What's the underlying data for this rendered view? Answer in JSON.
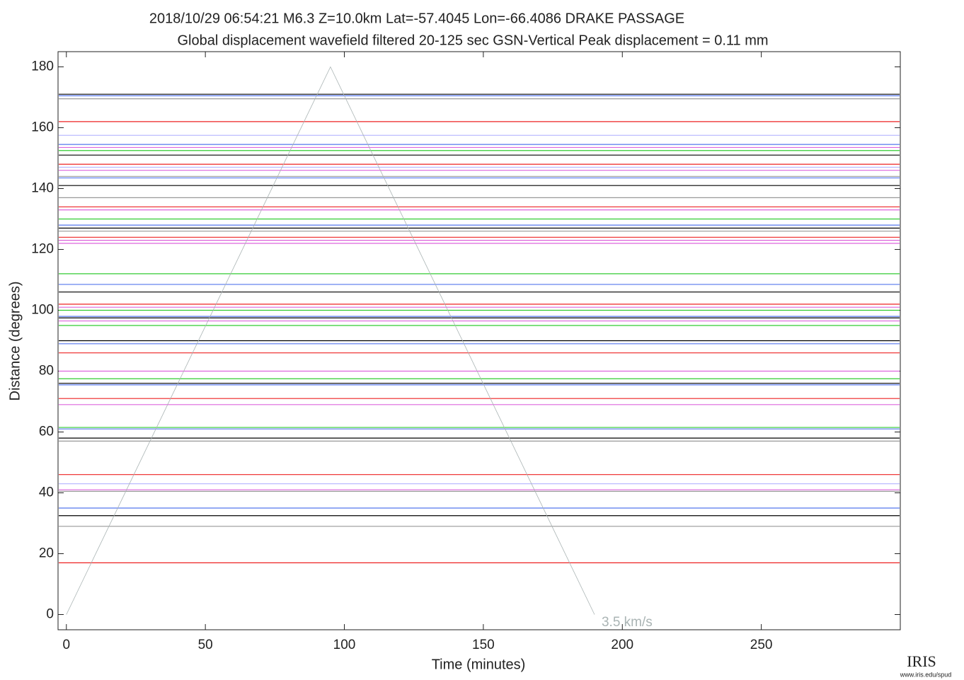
{
  "chart_data": {
    "type": "seismogram",
    "title": "2018/10/29  06:54:21  M6.3  Z=10.0km  Lat=-57.4045 Lon=-66.4086  DRAKE PASSAGE",
    "subtitle": "Global displacement wavefield    filtered 20-125 sec    GSN-Vertical    Peak displacement = 0.11 mm",
    "x_label": "Time (minutes)",
    "y_label": "Distance (degrees)",
    "xlim": [
      -3,
      300
    ],
    "ylim": [
      -5,
      185
    ],
    "xticks": [
      0,
      50,
      100,
      150,
      200,
      250
    ],
    "yticks": [
      0,
      20,
      40,
      60,
      80,
      100,
      120,
      140,
      160,
      180
    ],
    "traces": [
      {
        "distance": 171,
        "color": "#000000"
      },
      {
        "distance": 170.5,
        "color": "#5577ee"
      },
      {
        "distance": 169.5,
        "color": "#999999"
      },
      {
        "distance": 162,
        "color": "#ee2222"
      },
      {
        "distance": 157.5,
        "color": "#bbbbff"
      },
      {
        "distance": 154.5,
        "color": "#5577ee"
      },
      {
        "distance": 153.5,
        "color": "#dd66dd"
      },
      {
        "distance": 152.5,
        "color": "#33cc33"
      },
      {
        "distance": 151,
        "color": "#000000"
      },
      {
        "distance": 148,
        "color": "#ee2222"
      },
      {
        "distance": 147,
        "color": "#bbbbff"
      },
      {
        "distance": 146,
        "color": "#dd66dd"
      },
      {
        "distance": 144,
        "color": "#999999"
      },
      {
        "distance": 143.5,
        "color": "#5577ee"
      },
      {
        "distance": 141,
        "color": "#000000"
      },
      {
        "distance": 137,
        "color": "#999999"
      },
      {
        "distance": 134,
        "color": "#ee2222"
      },
      {
        "distance": 133,
        "color": "#dd66dd"
      },
      {
        "distance": 130,
        "color": "#33cc33"
      },
      {
        "distance": 128,
        "color": "#5577ee"
      },
      {
        "distance": 127,
        "color": "#000000"
      },
      {
        "distance": 126,
        "color": "#999999"
      },
      {
        "distance": 124,
        "color": "#ee2222"
      },
      {
        "distance": 123,
        "color": "#dd66dd"
      },
      {
        "distance": 122,
        "color": "#dd66dd"
      },
      {
        "distance": 112,
        "color": "#33cc33"
      },
      {
        "distance": 108.5,
        "color": "#5577ee"
      },
      {
        "distance": 106,
        "color": "#000000"
      },
      {
        "distance": 102,
        "color": "#ee2222"
      },
      {
        "distance": 101,
        "color": "#dd66dd"
      },
      {
        "distance": 100,
        "color": "#33cc33"
      },
      {
        "distance": 98,
        "color": "#5577ee"
      },
      {
        "distance": 97.5,
        "color": "#000000"
      },
      {
        "distance": 96.5,
        "color": "#dd66dd"
      },
      {
        "distance": 95,
        "color": "#33cc33"
      },
      {
        "distance": 90,
        "color": "#000000"
      },
      {
        "distance": 89,
        "color": "#5577ee"
      },
      {
        "distance": 86,
        "color": "#ee2222"
      },
      {
        "distance": 80,
        "color": "#dd66dd"
      },
      {
        "distance": 77.5,
        "color": "#33cc33"
      },
      {
        "distance": 76,
        "color": "#000000"
      },
      {
        "distance": 75.5,
        "color": "#5577ee"
      },
      {
        "distance": 71,
        "color": "#ee2222"
      },
      {
        "distance": 69,
        "color": "#dd66dd"
      },
      {
        "distance": 61.5,
        "color": "#33cc33"
      },
      {
        "distance": 61,
        "color": "#5577ee"
      },
      {
        "distance": 58,
        "color": "#000000"
      },
      {
        "distance": 57,
        "color": "#999999"
      },
      {
        "distance": 46,
        "color": "#ee2222"
      },
      {
        "distance": 43,
        "color": "#bbbbff"
      },
      {
        "distance": 41,
        "color": "#dd66dd"
      },
      {
        "distance": 40.5,
        "color": "#999999"
      },
      {
        "distance": 35,
        "color": "#5577ee"
      },
      {
        "distance": 32.5,
        "color": "#000000"
      },
      {
        "distance": 29,
        "color": "#999999"
      },
      {
        "distance": 17,
        "color": "#ee2222"
      }
    ],
    "travel_time_curve": {
      "label": "3.5 km/s",
      "color": "#aab4b4",
      "x": [
        0,
        95,
        190
      ],
      "y": [
        0,
        180,
        0
      ]
    },
    "logo": "IRIS",
    "logo_url": "www.iris.edu/spud"
  }
}
